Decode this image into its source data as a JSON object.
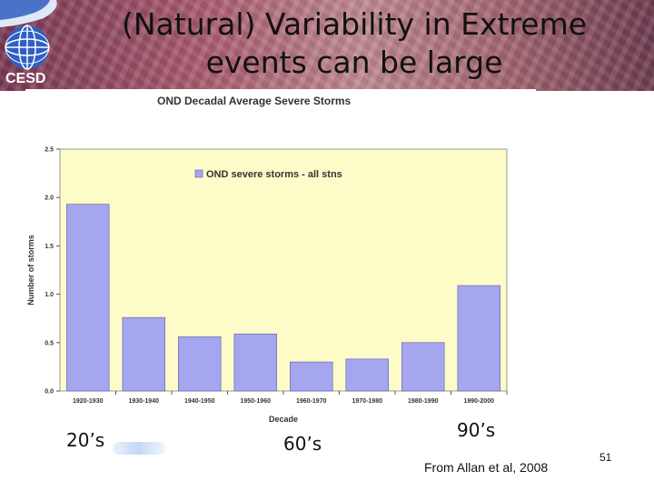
{
  "slide": {
    "title": "(Natural) Variability in Extreme events can be large",
    "logo_text": "CESD",
    "annotations": [
      "20’s",
      "60’s",
      "90’s"
    ],
    "credit": "From Allan et al, 2008",
    "page_number": "51"
  },
  "colors": {
    "plot_background": "#fdfcc8",
    "bar_fill": "#a6a6f0",
    "bar_stroke": "#5a5aa8"
  },
  "chart_data": {
    "type": "bar",
    "title": "OND Decadal Average Severe Storms",
    "xlabel": "Decade",
    "ylabel": "Number of storms",
    "ylim": [
      0,
      2.5
    ],
    "yticks": [
      "0.0",
      "0.5",
      "1.0",
      "1.5",
      "2.0",
      "2.5"
    ],
    "grid": false,
    "legend_position": "top-right",
    "categories": [
      "1920-1930",
      "1930-1940",
      "1940-1950",
      "1950-1960",
      "1960-1970",
      "1970-1980",
      "1980-1990",
      "1990-2000"
    ],
    "series": [
      {
        "name": "OND severe storms - all stns",
        "values": [
          1.93,
          0.76,
          0.56,
          0.59,
          0.3,
          0.33,
          0.5,
          1.09
        ]
      }
    ]
  }
}
